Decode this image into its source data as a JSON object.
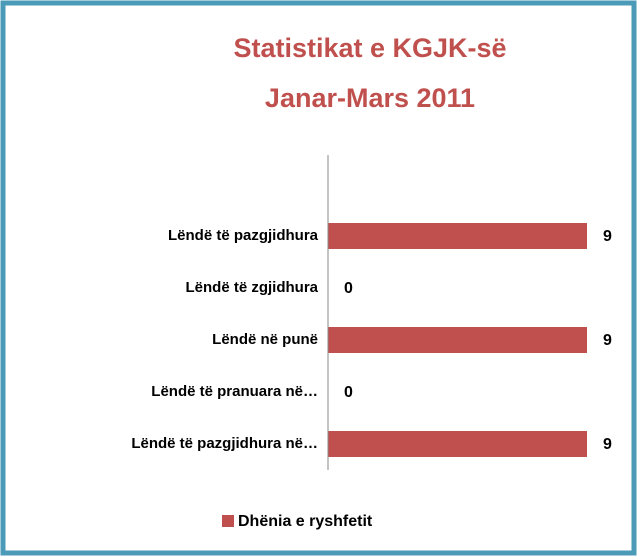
{
  "chart_data": {
    "type": "bar",
    "orientation": "horizontal",
    "title": [
      "Statistikat e KGJK-së",
      "Janar-Mars 2011"
    ],
    "categories": [
      "Lëndë të pazgjidhura",
      "Lëndë të zgjidhura",
      "Lëndë në punë",
      "Lëndë të pranuara në…",
      "Lëndë të pazgjidhura në…"
    ],
    "series": [
      {
        "name": "Dhënia e ryshfetit",
        "color": "#c0504d",
        "values": [
          9,
          0,
          9,
          0,
          9
        ]
      }
    ],
    "xlim": [
      0,
      9
    ],
    "legend": "bottom",
    "frame_color": "#4a9ab8"
  }
}
